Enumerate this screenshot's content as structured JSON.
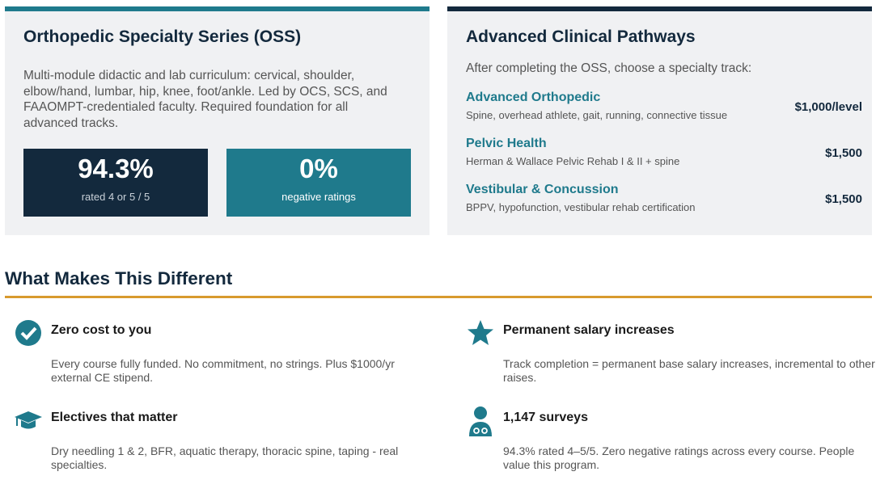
{
  "oss": {
    "title": "Orthopedic Specialty Series (OSS)",
    "description": "Multi-module didactic and lab curriculum: cervical, shoulder, elbow/hand, lumbar, hip, knee, foot/ankle. Led by OCS, SCS, and FAAOMPT-credentialed faculty. Required foundation for all advanced tracks.",
    "stats": [
      {
        "value": "94.3%",
        "label": "rated 4 or 5 / 5"
      },
      {
        "value": "0%",
        "label": "negative ratings"
      }
    ]
  },
  "pathways": {
    "title": "Advanced Clinical Pathways",
    "subtitle": "After completing the OSS, choose a specialty track:",
    "tracks": [
      {
        "name": "Advanced Orthopedic",
        "description": "Spine, overhead athlete, gait, running, connective tissue",
        "price": "$1,000/level"
      },
      {
        "name": "Pelvic Health",
        "description": "Herman & Wallace Pelvic Rehab I & II + spine",
        "price": "$1,500"
      },
      {
        "name": "Vestibular & Concussion",
        "description": "BPPV, hypofunction, vestibular rehab certification",
        "price": "$1,500"
      }
    ]
  },
  "section": {
    "title": "What Makes This Different",
    "features": [
      {
        "title": "Zero cost to you",
        "description": "Every course fully funded. No commitment, no strings. Plus $1000/yr external CE stipend."
      },
      {
        "title": "Permanent salary increases",
        "description": "Track completion = permanent base salary increases, incremental to other raises."
      },
      {
        "title": "Electives that matter",
        "description": "Dry needling 1 & 2, BFR, aquatic therapy, thoracic spine, taping - real specialties."
      },
      {
        "title": "1,147 surveys",
        "description": "94.3% rated 4–5/5. Zero negative ratings across every course. People value this program."
      }
    ]
  }
}
